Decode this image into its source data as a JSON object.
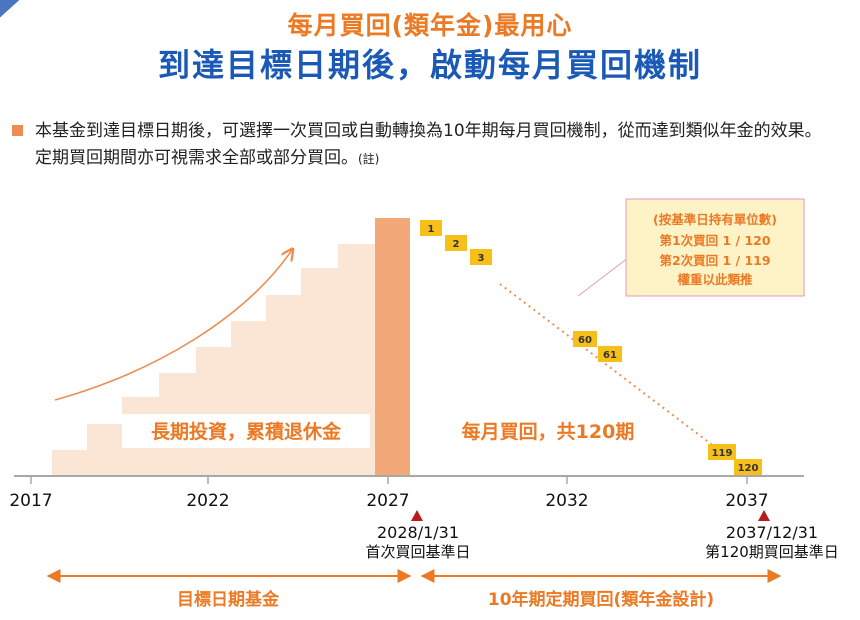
{
  "title": {
    "line1": "每月買回(類年金)最用心",
    "line2": "到達目標日期後，啟動每月買回機制"
  },
  "description": {
    "text": "本基金到達目標日期後，可選擇一次買回或自動轉換為10年期每月買回機制，從而達到類似年金的效果。定期買回期間亦可視需求全部或部分買回。",
    "note": "(註)"
  },
  "timeline": {
    "years": [
      "2017",
      "2022",
      "2027",
      "2032",
      "2037"
    ],
    "markers": [
      {
        "date": "2028/1/31",
        "label": "首次買回基準日"
      },
      {
        "date": "2037/12/31",
        "label": "第120期買回基準日"
      }
    ]
  },
  "phases": {
    "accumulation_label": "長期投資，累積退休金",
    "withdrawal_label": "每月買回，共120期"
  },
  "installments": [
    "1",
    "2",
    "3",
    "60",
    "61",
    "119",
    "120"
  ],
  "callout": {
    "lines": [
      "(按基準日持有單位數)",
      "第1次買回 1 / 120",
      "第2次買回 1 / 119",
      "權重以此類推"
    ]
  },
  "spans": {
    "left": "目標日期基金",
    "right": "10年期定期買回(類年金設計)"
  },
  "colors": {
    "orange": "#ec7a24",
    "blue": "#1b59b6",
    "stair": "#fbe5d5",
    "peak": "#f3a87a",
    "box": "#f7bf1a",
    "callout_bg": "#fdf3c7",
    "callout_border": "#e79ab4"
  }
}
